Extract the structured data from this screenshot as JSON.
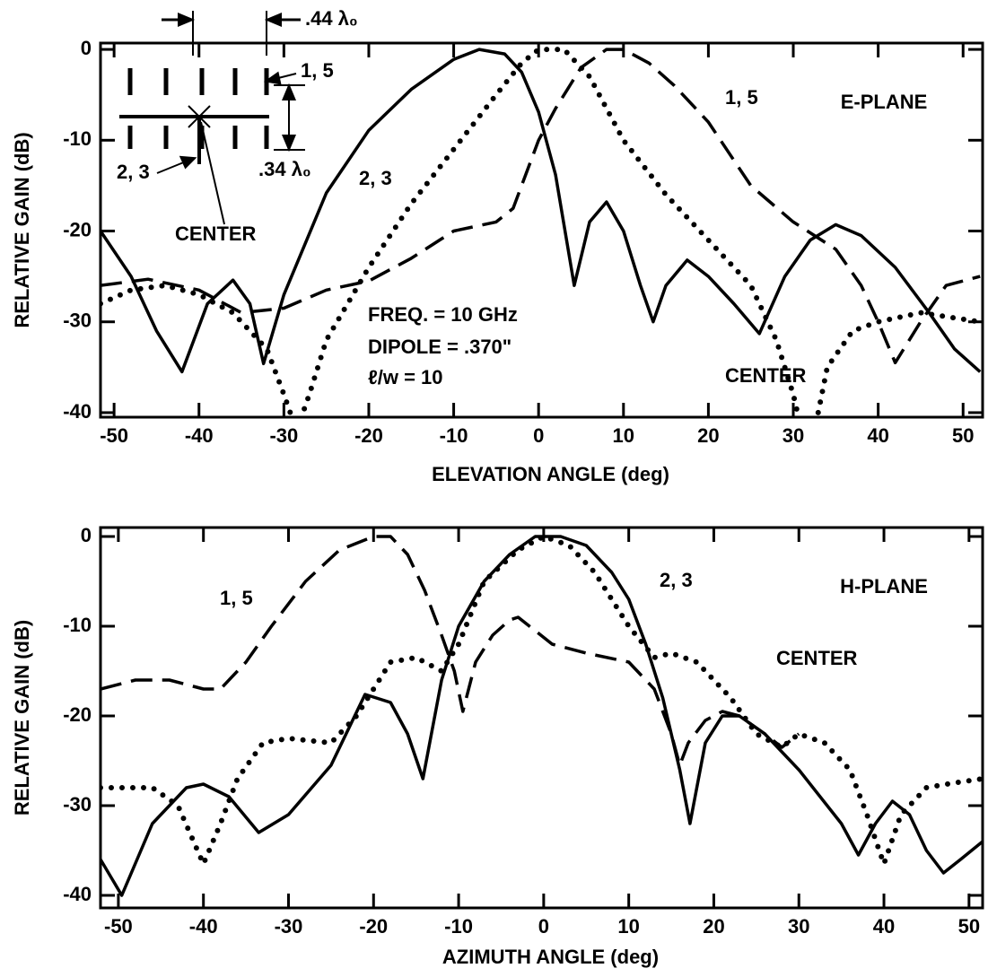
{
  "chart_data": [
    {
      "type": "line",
      "xlabel": "ELEVATION ANGLE (deg)",
      "ylabel": "RELATIVE GAIN (dB)",
      "xlim": [
        -51.6,
        52.3
      ],
      "ylim": [
        -40.5,
        0.7
      ],
      "xticks": [
        -50,
        -40,
        -30,
        -20,
        -10,
        0,
        10,
        20,
        30,
        40,
        50
      ],
      "yticks": [
        0,
        -10,
        -20,
        -30,
        -40
      ],
      "annotations": [
        "E-PLANE",
        "FREQ. = 10 GHz",
        "DIPOLE = .370\"",
        "ℓ/w = 10"
      ],
      "inset_labels": [
        ".44 λ₀",
        "1, 5",
        "2, 3",
        "CENTER",
        ".34 λ₀"
      ],
      "series": [
        {
          "name": "2, 3",
          "color": "#000000",
          "style": "solid",
          "x": [
            -51.6,
            -48,
            -45,
            -42,
            -39,
            -36,
            -34,
            -32.4,
            -30,
            -25,
            -20,
            -15,
            -10,
            -7,
            -4,
            -2,
            0,
            2,
            4.2,
            6,
            8,
            10,
            12,
            13.5,
            15,
            17.5,
            20,
            23,
            26,
            29,
            32,
            35,
            38,
            42,
            46,
            49,
            52
          ],
          "values": [
            -20,
            -25,
            -31,
            -35.5,
            -28,
            -25.4,
            -28,
            -34.6,
            -27,
            -15.8,
            -8.9,
            -4.4,
            -1.1,
            0,
            -0.5,
            -2.5,
            -6.9,
            -13.8,
            -26,
            -19,
            -16.8,
            -20,
            -26,
            -30,
            -26,
            -23.2,
            -25,
            -28,
            -31.3,
            -25,
            -21,
            -19.3,
            -20.5,
            -24,
            -29,
            -33,
            -35.5
          ]
        },
        {
          "name": "1, 5",
          "color": "#000000",
          "style": "dashed",
          "x": [
            -51.6,
            -46,
            -40,
            -35,
            -30,
            -25,
            -20,
            -15,
            -10,
            -5,
            -3,
            0,
            2,
            5,
            8,
            10,
            13,
            16,
            18,
            20,
            25,
            30,
            35,
            38,
            40,
            42,
            45,
            48,
            52
          ],
          "values": [
            -26,
            -25.3,
            -26.5,
            -29,
            -28.5,
            -26.5,
            -25.5,
            -23,
            -20,
            -19,
            -17.5,
            -10,
            -6.5,
            -2,
            0,
            0,
            -1.5,
            -4,
            -6,
            -8,
            -15,
            -19,
            -22,
            -26,
            -30,
            -34.5,
            -30,
            -26,
            -25
          ]
        },
        {
          "name": "CENTER",
          "color": "#000000",
          "style": "dotted",
          "x": [
            -51.6,
            -48,
            -44,
            -40,
            -36,
            -32,
            -30,
            -28.5,
            -27,
            -25,
            -20,
            -15,
            -10,
            -5,
            -2,
            0,
            3,
            6,
            10,
            15,
            20,
            25,
            28,
            30,
            31,
            32.5,
            34,
            37,
            40,
            45,
            52
          ],
          "values": [
            -28,
            -26.5,
            -26,
            -27,
            -29,
            -33,
            -38,
            -42,
            -38,
            -32,
            -24,
            -17,
            -11,
            -5,
            -1.5,
            0,
            0,
            -3,
            -10,
            -16,
            -21,
            -26,
            -32,
            -38,
            -42,
            -42,
            -35,
            -31,
            -30,
            -29,
            -30
          ]
        }
      ]
    },
    {
      "type": "line",
      "xlabel": "AZIMUTH ANGLE (deg)",
      "ylabel": "RELATIVE GAIN (dB)",
      "xlim": [
        -52.1,
        51.6
      ],
      "ylim": [
        -41.4,
        1.0
      ],
      "xticks": [
        -50,
        -40,
        -30,
        -20,
        -10,
        0,
        10,
        20,
        30,
        40,
        50
      ],
      "yticks": [
        0,
        -10,
        -20,
        -30,
        -40
      ],
      "annotations": [
        "H-PLANE"
      ],
      "series": [
        {
          "name": "2, 3",
          "color": "#000000",
          "style": "solid",
          "x": [
            -52.1,
            -49.6,
            -46,
            -42,
            -40,
            -37,
            -33.5,
            -30,
            -25,
            -21,
            -18,
            -16,
            -14.2,
            -12,
            -10,
            -7,
            -4,
            -1,
            2,
            5,
            8,
            10,
            12,
            14,
            16,
            17.2,
            19,
            21,
            23,
            26,
            30,
            35,
            37,
            39,
            41,
            43,
            45,
            47,
            49,
            51.6
          ],
          "values": [
            -36,
            -40,
            -32,
            -28,
            -27.6,
            -29,
            -33,
            -31,
            -25.5,
            -17.6,
            -18.5,
            -22,
            -27,
            -16,
            -10,
            -5,
            -2,
            0,
            0,
            -1,
            -4,
            -7,
            -12,
            -18,
            -26,
            -32,
            -23,
            -20,
            -20,
            -22,
            -26,
            -32,
            -35.5,
            -32,
            -29.5,
            -31,
            -35,
            -37.5,
            -36,
            -34
          ]
        },
        {
          "name": "1, 5",
          "color": "#000000",
          "style": "dashed",
          "x": [
            -52.1,
            -48,
            -44,
            -40,
            -38,
            -35,
            -32,
            -28,
            -24,
            -20,
            -18,
            -16,
            -14,
            -12,
            -10.5,
            -9.5,
            -8,
            -6,
            -4,
            -3,
            -1,
            1,
            5,
            10,
            13,
            15,
            16,
            17,
            19,
            21,
            23,
            26,
            28,
            30
          ],
          "values": [
            -17,
            -16,
            -16,
            -17,
            -17,
            -14,
            -10,
            -5,
            -1.5,
            0,
            0,
            -2,
            -6,
            -11,
            -15,
            -19.5,
            -14,
            -11,
            -9.3,
            -9,
            -10.5,
            -12,
            -13,
            -14,
            -17,
            -22,
            -25.5,
            -23,
            -20.5,
            -19.5,
            -20,
            -22,
            -23.5,
            -22
          ]
        },
        {
          "name": "CENTER",
          "color": "#000000",
          "style": "dotted",
          "x": [
            -52.1,
            -46,
            -43,
            -40,
            -38,
            -36,
            -33,
            -30,
            -25,
            -22,
            -18,
            -15,
            -12,
            -10,
            -7,
            -3,
            0,
            3,
            6,
            10,
            13,
            15,
            18,
            22,
            25,
            28,
            30,
            33,
            36,
            38,
            40,
            42,
            45,
            48,
            51.6
          ],
          "values": [
            -28,
            -28,
            -30,
            -36.5,
            -32,
            -27,
            -23,
            -22.5,
            -23,
            -20,
            -14,
            -13.5,
            -15,
            -12,
            -5,
            -1.5,
            0,
            -1,
            -4,
            -10,
            -13.5,
            -13,
            -14,
            -18,
            -22,
            -23.5,
            -22,
            -23,
            -26,
            -31,
            -36.5,
            -31,
            -28,
            -27.5,
            -27
          ]
        }
      ]
    }
  ]
}
